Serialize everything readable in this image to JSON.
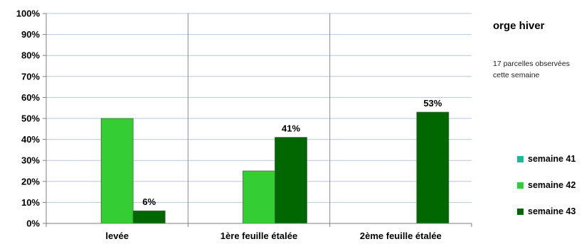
{
  "chart_data": {
    "type": "bar",
    "title": "",
    "categories": [
      "levée",
      "1ère feuille étalée",
      "2ème feuille étalée"
    ],
    "series": [
      {
        "name": "semaine 41",
        "color": "#1fb89a",
        "values": [
          0,
          0,
          0
        ],
        "labels": [
          "",
          "",
          ""
        ]
      },
      {
        "name": "semaine 42",
        "color": "#33cc33",
        "values": [
          50,
          25,
          0
        ],
        "labels": [
          "",
          "",
          ""
        ]
      },
      {
        "name": "semaine 43",
        "color": "#006600",
        "values": [
          6,
          41,
          53
        ],
        "labels": [
          "6%",
          "41%",
          "53%"
        ]
      }
    ],
    "ylim": [
      0,
      100
    ],
    "yticks": [
      "0%",
      "10%",
      "20%",
      "30%",
      "40%",
      "50%",
      "60%",
      "70%",
      "80%",
      "90%",
      "100%"
    ],
    "grid": true,
    "legend_position": "right"
  },
  "side_panel": {
    "title": "orge hiver",
    "note": "17 parcelles observées cette semaine"
  }
}
